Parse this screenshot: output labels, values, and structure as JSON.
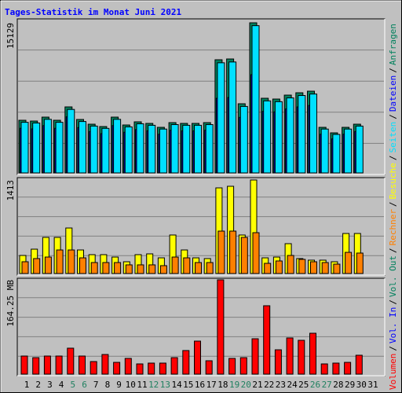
{
  "chart_data": [
    {
      "type": "bar",
      "title": "Tages-Statistik im Monat Juni 2021",
      "categories": [
        "1",
        "2",
        "3",
        "4",
        "5",
        "6",
        "7",
        "8",
        "9",
        "10",
        "11",
        "12",
        "13",
        "14",
        "15",
        "16",
        "17",
        "18",
        "19",
        "20",
        "21",
        "22",
        "23",
        "24",
        "25",
        "26",
        "27",
        "28",
        "29",
        "30",
        "31"
      ],
      "highlighted_categories": [
        "5",
        "6",
        "12",
        "13",
        "19",
        "20",
        "26",
        "27"
      ],
      "highlight_color": "#208060",
      "ylim": [
        0,
        15129
      ],
      "yticks": [
        15129
      ],
      "grid_divisions": 5,
      "series": [
        {
          "name": "Anfragen",
          "color": "#00805c",
          "values": [
            5306,
            5227,
            5623,
            5306,
            6653,
            5386,
            4910,
            4673,
            5623,
            4831,
            5148,
            4990,
            4594,
            5069,
            4990,
            4990,
            5069,
            11405,
            11484,
            6970,
            15129,
            7524,
            7445,
            7841,
            8078,
            8237,
            4594,
            4039,
            4594,
            4910,
            null
          ]
        },
        {
          "name": "Dateien",
          "color": "#0000ff",
          "values": [
            4500,
            4440,
            4770,
            4500,
            5650,
            4570,
            4170,
            3960,
            4770,
            4100,
            4370,
            4240,
            3900,
            4300,
            4240,
            4240,
            4300,
            7520,
            7600,
            5600,
            9900,
            6200,
            6150,
            6450,
            6650,
            6800,
            3900,
            3430,
            3900,
            4170,
            null
          ]
        },
        {
          "name": "Seiten",
          "color": "#00e0ff",
          "values": [
            5100,
            5030,
            5400,
            5100,
            6400,
            5180,
            4720,
            4490,
            5400,
            4640,
            4950,
            4800,
            4420,
            4870,
            4800,
            4800,
            4870,
            11100,
            11180,
            6700,
            14840,
            7260,
            7180,
            7560,
            7800,
            7950,
            4420,
            3880,
            4420,
            4720,
            null
          ]
        }
      ]
    },
    {
      "type": "bar",
      "ylim": [
        0,
        1413
      ],
      "yticks": [
        1413
      ],
      "grid_divisions": 5,
      "series": [
        {
          "name": "Besuche",
          "color": "#ffff00",
          "values": [
            273,
            368,
            546,
            546,
            688,
            356,
            285,
            285,
            249,
            178,
            285,
            297,
            237,
            582,
            356,
            237,
            226,
            1294,
            1318,
            582,
            1413,
            237,
            249,
            451,
            226,
            202,
            202,
            178,
            605,
            605,
            null
          ]
        },
        {
          "name": "Rechner",
          "color": "#ff8000",
          "values": [
            178,
            226,
            249,
            356,
            356,
            237,
            166,
            166,
            166,
            131,
            131,
            131,
            119,
            249,
            237,
            166,
            166,
            641,
            641,
            546,
            617,
            154,
            190,
            273,
            214,
            178,
            166,
            142,
            320,
            309,
            null
          ]
        }
      ]
    },
    {
      "type": "bar",
      "ylim": [
        0,
        164.25
      ],
      "yticks": [
        {
          "value": 164.25,
          "label": "164.25 MB"
        }
      ],
      "grid_divisions": 5,
      "series": [
        {
          "name": "Volumen",
          "color": "#ff0000",
          "values": [
            31.5,
            28.7,
            31.5,
            31.5,
            45.2,
            31.5,
            21.9,
            34.2,
            20.5,
            27.4,
            17.8,
            19.2,
            19.2,
            28.7,
            41.1,
            57.5,
            23.3,
            164.25,
            27.4,
            28.7,
            61.6,
            119.1,
            42.4,
            63.0,
            58.9,
            71.2,
            17.8,
            19.2,
            20.5,
            32.9,
            null
          ]
        }
      ],
      "extra_legend": [
        {
          "name": "Vol. In",
          "color": "#0000ff"
        },
        {
          "name": "Vol. Out",
          "color": "#00805c"
        }
      ]
    }
  ],
  "legend_separator": "/"
}
